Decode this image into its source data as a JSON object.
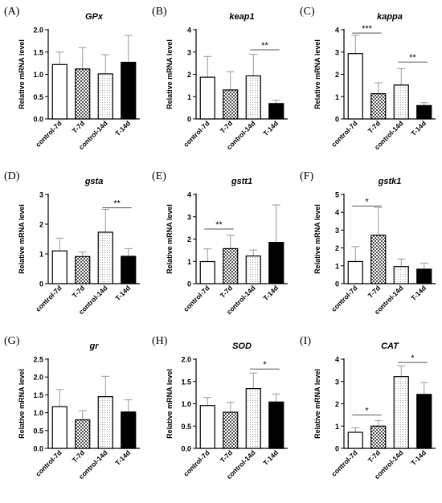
{
  "figure_title": "",
  "categories": [
    "control-7d",
    "T-7d",
    "control-14d",
    "T-14d"
  ],
  "ylabel": "Relative mRNA level",
  "patterns": [
    "open",
    "checker",
    "dots",
    "solid"
  ],
  "colors": {
    "stroke": "#000000",
    "background": "#ffffff"
  },
  "chart_data": [
    {
      "panel_label": "(A)",
      "title": "GPx",
      "type": "bar",
      "ylim": [
        0,
        2.0
      ],
      "yticks": [
        "0.0",
        "0.5",
        "1.0",
        "1.5",
        "2.0"
      ],
      "ytick_values": [
        0,
        0.5,
        1.0,
        1.5,
        2.0
      ],
      "categories": [
        "control-7d",
        "T-7d",
        "control-14d",
        "T-14d"
      ],
      "values": [
        1.22,
        1.12,
        1.01,
        1.27
      ],
      "errors": [
        0.28,
        0.48,
        0.43,
        0.6
      ],
      "significance": []
    },
    {
      "panel_label": "(B)",
      "title": "keap1",
      "type": "bar",
      "ylim": [
        0,
        4
      ],
      "yticks": [
        "0",
        "1",
        "2",
        "3",
        "4"
      ],
      "ytick_values": [
        0,
        1,
        2,
        3,
        4
      ],
      "categories": [
        "control-7d",
        "T-7d",
        "control-14d",
        "T-14d"
      ],
      "values": [
        1.87,
        1.3,
        1.93,
        0.69
      ],
      "errors": [
        0.93,
        0.82,
        0.97,
        0.15
      ],
      "significance": [
        {
          "from": 2,
          "to": 3,
          "y": 3.1,
          "text": "**"
        }
      ]
    },
    {
      "panel_label": "(C)",
      "title": "kappa",
      "type": "bar",
      "ylim": [
        0,
        4
      ],
      "yticks": [
        "0",
        "1",
        "2",
        "3",
        "4"
      ],
      "ytick_values": [
        0,
        1,
        2,
        3,
        4
      ],
      "categories": [
        "control-7d",
        "T-7d",
        "control-14d",
        "T-14d"
      ],
      "values": [
        2.93,
        1.13,
        1.52,
        0.6
      ],
      "errors": [
        0.82,
        0.49,
        0.74,
        0.13
      ],
      "significance": [
        {
          "from": 0,
          "to": 1,
          "y": 3.85,
          "text": "***"
        },
        {
          "from": 2,
          "to": 3,
          "y": 2.55,
          "text": "**"
        }
      ]
    },
    {
      "panel_label": "(D)",
      "title": "gsta",
      "type": "bar",
      "ylim": [
        0,
        3
      ],
      "yticks": [
        "0",
        "1",
        "2",
        "3"
      ],
      "ytick_values": [
        0,
        1,
        2,
        3
      ],
      "categories": [
        "control-7d",
        "T-7d",
        "control-14d",
        "T-14d"
      ],
      "values": [
        1.1,
        0.91,
        1.73,
        0.92
      ],
      "errors": [
        0.43,
        0.15,
        0.77,
        0.26
      ],
      "significance": [
        {
          "from": 2,
          "to": 3,
          "y": 2.55,
          "text": "**"
        }
      ]
    },
    {
      "panel_label": "(E)",
      "title": "gstt1",
      "type": "bar",
      "ylim": [
        0,
        4
      ],
      "yticks": [
        "0",
        "1",
        "2",
        "3",
        "4"
      ],
      "ytick_values": [
        0,
        1,
        2,
        3,
        4
      ],
      "categories": [
        "control-7d",
        "T-7d",
        "control-14d",
        "T-14d"
      ],
      "values": [
        0.99,
        1.57,
        1.24,
        1.85
      ],
      "errors": [
        0.57,
        0.6,
        0.27,
        1.68
      ],
      "significance": [
        {
          "from": 0,
          "to": 1,
          "y": 2.45,
          "text": "**"
        }
      ]
    },
    {
      "panel_label": "(F)",
      "title": "gstk1",
      "type": "bar",
      "ylim": [
        0,
        5
      ],
      "yticks": [
        "0",
        "1",
        "2",
        "3",
        "4",
        "5"
      ],
      "ytick_values": [
        0,
        1,
        2,
        3,
        4,
        5
      ],
      "categories": [
        "control-7d",
        "T-7d",
        "control-14d",
        "T-14d"
      ],
      "values": [
        1.24,
        2.72,
        0.96,
        0.81
      ],
      "errors": [
        0.84,
        1.55,
        0.42,
        0.34
      ],
      "significance": [
        {
          "from": 0,
          "to": 1,
          "y": 4.35,
          "text": "*"
        }
      ]
    },
    {
      "panel_label": "(G)",
      "title": "gr",
      "type": "bar",
      "ylim": [
        0,
        2.5
      ],
      "yticks": [
        "0.0",
        "0.5",
        "1.0",
        "1.5",
        "2.0",
        "2.5"
      ],
      "ytick_values": [
        0,
        0.5,
        1.0,
        1.5,
        2.0,
        2.5
      ],
      "categories": [
        "control-7d",
        "T-7d",
        "control-14d",
        "T-14d"
      ],
      "values": [
        1.17,
        0.8,
        1.45,
        1.02
      ],
      "errors": [
        0.48,
        0.26,
        0.57,
        0.34
      ],
      "significance": []
    },
    {
      "panel_label": "(H)",
      "title": "SOD",
      "type": "bar",
      "ylim": [
        0,
        2.0
      ],
      "yticks": [
        "0.0",
        "0.5",
        "1.0",
        "1.5",
        "2.0"
      ],
      "ytick_values": [
        0,
        0.5,
        1.0,
        1.5,
        2.0
      ],
      "categories": [
        "control-7d",
        "T-7d",
        "control-14d",
        "T-14d"
      ],
      "values": [
        0.96,
        0.81,
        1.34,
        1.04
      ],
      "errors": [
        0.18,
        0.22,
        0.35,
        0.18
      ],
      "significance": [
        {
          "from": 2,
          "to": 3,
          "y": 1.78,
          "text": "*"
        }
      ]
    },
    {
      "panel_label": "(I)",
      "title": "CAT",
      "type": "bar",
      "ylim": [
        0,
        4
      ],
      "yticks": [
        "0",
        "1",
        "2",
        "3",
        "4"
      ],
      "ytick_values": [
        0,
        1,
        2,
        3,
        4
      ],
      "categories": [
        "control-7d",
        "T-7d",
        "control-14d",
        "T-14d"
      ],
      "values": [
        0.72,
        1.0,
        3.22,
        2.42
      ],
      "errors": [
        0.2,
        0.25,
        0.48,
        0.53
      ],
      "significance": [
        {
          "from": 0,
          "to": 1,
          "y": 1.5,
          "text": "*"
        },
        {
          "from": 2,
          "to": 3,
          "y": 3.85,
          "text": "*"
        }
      ]
    }
  ]
}
